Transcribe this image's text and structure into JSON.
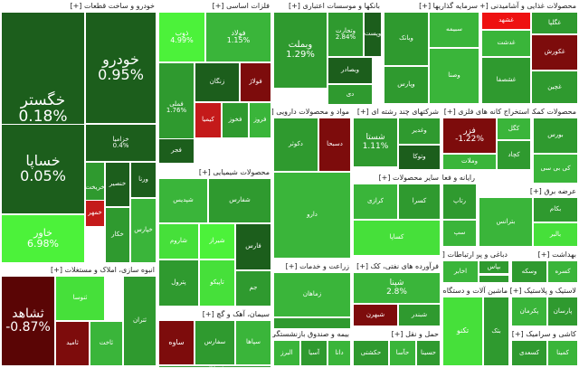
{
  "chart_data": {
    "type": "heatmap",
    "sectors": [
      {
        "name": "خودرو و ساخت قطعات [+]",
        "tiles": [
          {
            "symbol": "خگستر",
            "change": "0.18%"
          },
          {
            "symbol": "خودرو",
            "change": "0.95%"
          },
          {
            "symbol": "خساپا",
            "change": "0.05%"
          },
          {
            "symbol": "خزامیا",
            "change": "0.4%"
          },
          {
            "symbol": "خاور",
            "change": "6.98%"
          },
          {
            "symbol": "خریخت",
            "change": ""
          },
          {
            "symbol": "خمهر",
            "change": ""
          },
          {
            "symbol": "خنصیر",
            "change": ""
          },
          {
            "symbol": "خکار",
            "change": ""
          },
          {
            "symbol": "ورنا",
            "change": ""
          },
          {
            "symbol": "خپارس",
            "change": ""
          }
        ]
      },
      {
        "name": "انبوه سازی، املاک و مستغلات [+]",
        "tiles": [
          {
            "symbol": "ثشاهد",
            "change": "-0.87%"
          },
          {
            "symbol": "ثنوسا",
            "change": ""
          },
          {
            "symbol": "ثامید",
            "change": ""
          },
          {
            "symbol": "ثاخت",
            "change": ""
          },
          {
            "symbol": "ثتران",
            "change": ""
          }
        ]
      },
      {
        "name": "فلزات اساسی [+]",
        "tiles": [
          {
            "symbol": "ذوب",
            "change": "4.99%"
          },
          {
            "symbol": "فولاد",
            "change": "1.15%"
          },
          {
            "symbol": "فملی",
            "change": "1.76%"
          },
          {
            "symbol": "زنگان",
            "change": ""
          },
          {
            "symbol": "فولاژ",
            "change": ""
          },
          {
            "symbol": "کیمیا",
            "change": ""
          },
          {
            "symbol": "فخوز",
            "change": ""
          },
          {
            "symbol": "فروز",
            "change": ""
          },
          {
            "symbol": "فجر",
            "change": ""
          }
        ]
      },
      {
        "name": "محصولات شیمیایی [+]",
        "tiles": [
          {
            "symbol": "شپدیس",
            "change": ""
          },
          {
            "symbol": "شفارس",
            "change": ""
          },
          {
            "symbol": "شاروم",
            "change": ""
          },
          {
            "symbol": "شیراز",
            "change": ""
          },
          {
            "symbol": "پترول",
            "change": ""
          },
          {
            "symbol": "تاپیکو",
            "change": ""
          },
          {
            "symbol": "فارس",
            "change": ""
          },
          {
            "symbol": "جم",
            "change": ""
          }
        ]
      },
      {
        "name": "سیمان، آهک و گچ [+]",
        "tiles": [
          {
            "symbol": "ساوه",
            "change": ""
          },
          {
            "symbol": "سفارس",
            "change": ""
          },
          {
            "symbol": "سپاها",
            "change": ""
          },
          {
            "symbol": "سیمان",
            "change": ""
          }
        ]
      },
      {
        "name": "بانکها و موسسات اعتباری [+]",
        "tiles": [
          {
            "symbol": "وبملت",
            "change": "1.29%"
          },
          {
            "symbol": "وتجارت",
            "change": "2.84%"
          },
          {
            "symbol": "وبصادر",
            "change": ""
          },
          {
            "symbol": "وپست",
            "change": ""
          },
          {
            "symbol": "دی",
            "change": ""
          }
        ]
      },
      {
        "name": "مواد و محصولات دارویی [+]",
        "tiles": [
          {
            "symbol": "دکوثر",
            "change": ""
          },
          {
            "symbol": "دسبحا",
            "change": ""
          },
          {
            "symbol": "دارو",
            "change": ""
          }
        ]
      },
      {
        "name": "شرکتهای چند رشته ای [+]",
        "tiles": [
          {
            "symbol": "شستا",
            "change": "1.11%"
          },
          {
            "symbol": "وغدیر",
            "change": ""
          },
          {
            "symbol": "وتوکا",
            "change": ""
          }
        ]
      },
      {
        "name": "سایر محصولات [+]",
        "tiles": [
          {
            "symbol": "کرازی",
            "change": ""
          },
          {
            "symbol": "کسرا",
            "change": ""
          },
          {
            "symbol": "کساپا",
            "change": ""
          }
        ]
      },
      {
        "name": "رایانه و فعالیت های وابسته [+]",
        "tiles": [
          {
            "symbol": "رتاپ",
            "change": ""
          },
          {
            "symbol": "سپ",
            "change": ""
          }
        ]
      },
      {
        "name": "زراعت و خدمات [+]",
        "tiles": [
          {
            "symbol": "زماهان",
            "change": ""
          },
          {
            "symbol": "زکشت",
            "change": ""
          }
        ]
      },
      {
        "name": "فرآورده های نفتی، کک [+]",
        "tiles": [
          {
            "symbol": "شپنا",
            "change": "2.8%"
          },
          {
            "symbol": "شبهرن",
            "change": ""
          },
          {
            "symbol": "شبندر",
            "change": ""
          }
        ]
      },
      {
        "name": "استخراج کانه های فلزی [+]",
        "tiles": [
          {
            "symbol": "فزر",
            "change": "-1.22%"
          },
          {
            "symbol": "کگل",
            "change": ""
          },
          {
            "symbol": "کچاد",
            "change": ""
          },
          {
            "symbol": "وملات",
            "change": ""
          }
        ]
      },
      {
        "name": "سرمایه گذاریها [+]",
        "tiles": [
          {
            "symbol": "وبانک",
            "change": ""
          },
          {
            "symbol": "سبیمه",
            "change": ""
          },
          {
            "symbol": "وپارس",
            "change": ""
          },
          {
            "symbol": "وصنا",
            "change": ""
          }
        ]
      },
      {
        "name": "محصولات غذایی و آشامیدنی [+]",
        "tiles": [
          {
            "symbol": "غشهد",
            "change": ""
          },
          {
            "symbol": "غگلپا",
            "change": ""
          },
          {
            "symbol": "غدشت",
            "change": ""
          },
          {
            "symbol": "غشصفا",
            "change": ""
          },
          {
            "symbol": "غکورش",
            "change": ""
          },
          {
            "symbol": "غچین",
            "change": ""
          }
        ]
      },
      {
        "name": "محصولات کمکی به [+]",
        "tiles": [
          {
            "symbol": "بورس",
            "change": ""
          },
          {
            "symbol": "کی بی سی",
            "change": ""
          }
        ]
      },
      {
        "name": "عرضه برق [+]",
        "tiles": [
          {
            "symbol": "بترانس",
            "change": ""
          },
          {
            "symbol": "بکام",
            "change": ""
          },
          {
            "symbol": "بالبر",
            "change": ""
          }
        ]
      },
      {
        "name": "حمل و نقل [+]",
        "tiles": [
          {
            "symbol": "حکشتی",
            "change": ""
          },
          {
            "symbol": "حآسا",
            "change": ""
          },
          {
            "symbol": "حسینا",
            "change": ""
          }
        ]
      },
      {
        "name": "اطلاعات و ارتباطات [+]",
        "tiles": [
          {
            "symbol": "اخابر",
            "change": ""
          },
          {
            "symbol": "همراه",
            "change": ""
          }
        ]
      },
      {
        "name": "ماشین آلات و دستگاه [+]",
        "tiles": [
          {
            "symbol": "تکنو",
            "change": ""
          },
          {
            "symbol": "بتک",
            "change": ""
          }
        ]
      },
      {
        "name": "بیمه و صندوق بازنشستگی [+]",
        "tiles": [
          {
            "symbol": "البرز",
            "change": ""
          },
          {
            "symbol": "آسیا",
            "change": ""
          },
          {
            "symbol": "دانا",
            "change": ""
          }
        ]
      },
      {
        "name": "بهداشت [+]",
        "tiles": [
          {
            "symbol": "وسکه",
            "change": ""
          },
          {
            "symbol": "کسره",
            "change": ""
          }
        ]
      },
      {
        "name": "لاستیک و پلاستیک [+]",
        "tiles": [
          {
            "symbol": "پکرمان",
            "change": ""
          },
          {
            "symbol": "پارسان",
            "change": ""
          }
        ]
      },
      {
        "name": "کاشی و سرامیک [+]",
        "tiles": [
          {
            "symbol": "کسعدی",
            "change": ""
          },
          {
            "symbol": "کمینا",
            "change": ""
          }
        ]
      },
      {
        "name": "دباغی و پرداخت [+]",
        "tiles": [
          {
            "symbol": "بپاس",
            "change": ""
          }
        ]
      }
    ]
  },
  "colors": {
    "strong_up": "#1c5e1c",
    "up": "#2f9a2f",
    "mid_up": "#3ab53a",
    "bright_up": "#46e03a",
    "neon_up": "#4cf23a",
    "down": "#7d0c0c",
    "strong_down": "#5a0505",
    "bright_down": "#c41a1a",
    "accent_red": "#ee1111"
  }
}
